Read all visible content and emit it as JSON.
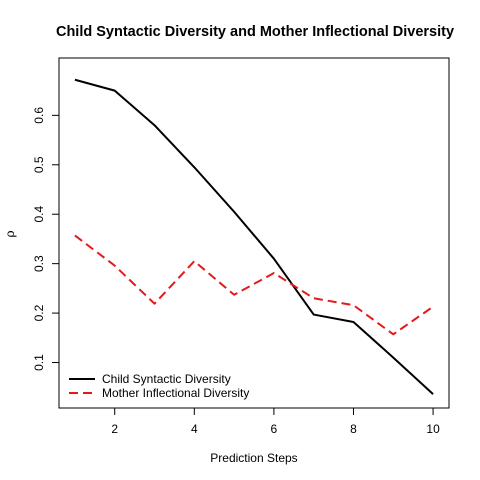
{
  "chart_data": {
    "type": "line",
    "title": "Child Syntactic Diversity and Mother Inflectional Diversity",
    "xlabel": "Prediction Steps",
    "ylabel": "ρ",
    "x": [
      1,
      2,
      3,
      4,
      5,
      6,
      7,
      8,
      9,
      10
    ],
    "xlim": [
      0.6,
      10.4
    ],
    "ylim": [
      0.008,
      0.716
    ],
    "xticks": [
      2,
      4,
      6,
      8,
      10
    ],
    "yticks": [
      0.1,
      0.2,
      0.3,
      0.4,
      0.5,
      0.6
    ],
    "yticklabels": [
      "0.1",
      "0.2",
      "0.3",
      "0.4",
      "0.5",
      "0.6"
    ],
    "xticklabels": [
      "2",
      "4",
      "6",
      "8",
      "10"
    ],
    "grid": false,
    "legend_position": "bottom-left",
    "series": [
      {
        "name": "Child Syntactic Diversity",
        "color": "#000000",
        "dash": "solid",
        "values": [
          0.672,
          0.65,
          0.58,
          0.495,
          0.405,
          0.31,
          0.197,
          0.182,
          0.11,
          0.036
        ]
      },
      {
        "name": "Mother Inflectional Diversity",
        "color": "#e31a1c",
        "dash": "dashed",
        "values": [
          0.357,
          0.296,
          0.219,
          0.305,
          0.237,
          0.281,
          0.23,
          0.216,
          0.157,
          0.213
        ]
      }
    ]
  }
}
